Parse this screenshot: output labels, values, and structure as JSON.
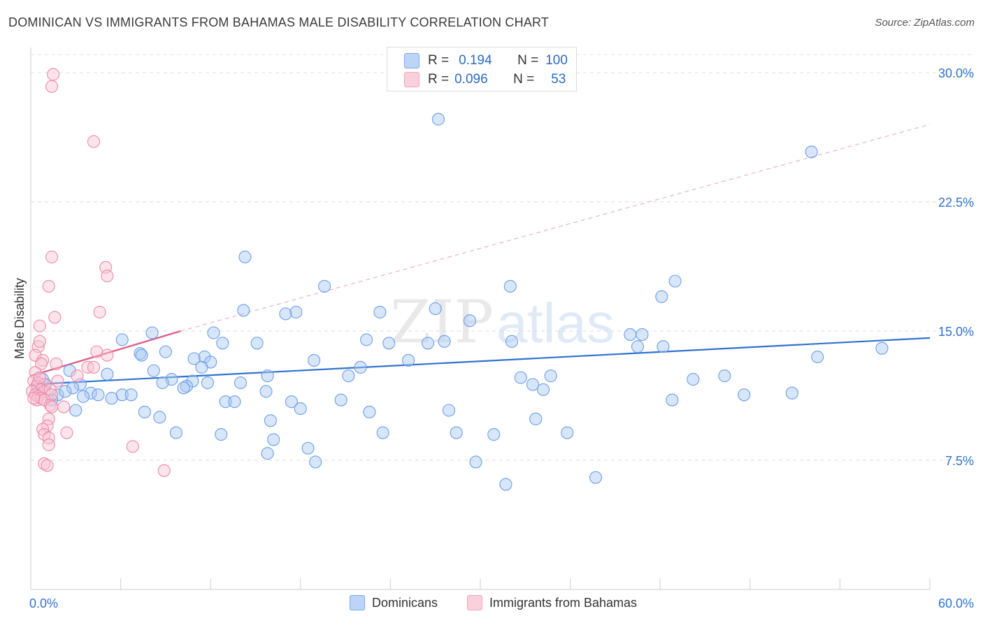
{
  "title": "DOMINICAN VS IMMIGRANTS FROM BAHAMAS MALE DISABILITY CORRELATION CHART",
  "source": "Source: ZipAtlas.com",
  "watermark": {
    "zip": "ZIP",
    "atlas": "atlas"
  },
  "stats": {
    "r_label": "R =",
    "n_label": "N =",
    "rows": [
      {
        "r": "0.194",
        "n": "100",
        "color": "#7aaaf0"
      },
      {
        "r": "0.096",
        "n": "53",
        "color": "#f3a3bd"
      }
    ]
  },
  "chart_data": {
    "type": "scatter",
    "title": "DOMINICAN VS IMMIGRANTS FROM BAHAMAS MALE DISABILITY CORRELATION CHART",
    "xlabel": "",
    "ylabel": "Male Disability",
    "xlim": [
      0,
      60
    ],
    "ylim": [
      0,
      31.3
    ],
    "x_tick_labels": [
      "0.0%",
      "60.0%"
    ],
    "y_ticks": [
      7.5,
      15.0,
      22.5,
      30.0
    ],
    "y_tick_labels": [
      "7.5%",
      "15.0%",
      "22.5%",
      "30.0%"
    ],
    "series": [
      {
        "name": "Dominicans",
        "color": "#6b9ee8",
        "fill": "#a9c8f4",
        "trend": {
          "x": [
            0,
            60
          ],
          "y": [
            11.9,
            14.6
          ],
          "dashed": false,
          "color": "#2f72d0"
        },
        "points": [
          [
            27.2,
            27.3
          ],
          [
            52.1,
            25.4
          ],
          [
            14.3,
            19.3
          ],
          [
            19.6,
            17.6
          ],
          [
            32.0,
            17.6
          ],
          [
            43.0,
            17.9
          ],
          [
            42.1,
            17.0
          ],
          [
            27.0,
            16.3
          ],
          [
            17.7,
            16.1
          ],
          [
            23.3,
            16.1
          ],
          [
            14.2,
            16.2
          ],
          [
            17.0,
            16.0
          ],
          [
            29.3,
            15.6
          ],
          [
            40.8,
            14.8
          ],
          [
            40.0,
            14.8
          ],
          [
            8.1,
            14.9
          ],
          [
            12.2,
            14.9
          ],
          [
            6.1,
            14.5
          ],
          [
            22.4,
            14.5
          ],
          [
            32.1,
            14.4
          ],
          [
            12.8,
            14.3
          ],
          [
            15.1,
            14.3
          ],
          [
            23.9,
            14.3
          ],
          [
            26.5,
            14.3
          ],
          [
            27.6,
            14.4
          ],
          [
            40.5,
            14.1
          ],
          [
            42.2,
            14.1
          ],
          [
            56.8,
            14.0
          ],
          [
            9.0,
            13.8
          ],
          [
            7.3,
            13.7
          ],
          [
            7.4,
            13.6
          ],
          [
            11.6,
            13.5
          ],
          [
            18.9,
            13.3
          ],
          [
            10.9,
            13.4
          ],
          [
            12.0,
            13.2
          ],
          [
            25.2,
            13.3
          ],
          [
            11.4,
            12.9
          ],
          [
            22.0,
            12.9
          ],
          [
            2.6,
            12.7
          ],
          [
            8.2,
            12.7
          ],
          [
            5.1,
            12.5
          ],
          [
            15.8,
            12.4
          ],
          [
            21.2,
            12.4
          ],
          [
            32.7,
            12.3
          ],
          [
            34.7,
            12.4
          ],
          [
            46.3,
            12.4
          ],
          [
            52.5,
            13.5
          ],
          [
            44.2,
            12.2
          ],
          [
            0.8,
            12.2
          ],
          [
            9.4,
            12.2
          ],
          [
            10.8,
            12.1
          ],
          [
            1.0,
            11.9
          ],
          [
            11.8,
            12.0
          ],
          [
            14.0,
            12.0
          ],
          [
            33.5,
            11.9
          ],
          [
            8.8,
            12.0
          ],
          [
            15.7,
            11.5
          ],
          [
            34.2,
            11.6
          ],
          [
            3.3,
            11.9
          ],
          [
            2.8,
            11.7
          ],
          [
            4.0,
            11.4
          ],
          [
            1.8,
            11.3
          ],
          [
            2.3,
            11.5
          ],
          [
            3.5,
            11.2
          ],
          [
            6.1,
            11.3
          ],
          [
            6.7,
            11.3
          ],
          [
            4.5,
            11.3
          ],
          [
            10.4,
            11.8
          ],
          [
            10.2,
            11.7
          ],
          [
            5.4,
            11.1
          ],
          [
            20.7,
            11.0
          ],
          [
            42.8,
            11.0
          ],
          [
            47.6,
            11.3
          ],
          [
            50.8,
            11.4
          ],
          [
            13.0,
            10.9
          ],
          [
            13.6,
            10.9
          ],
          [
            17.4,
            10.9
          ],
          [
            3.0,
            10.4
          ],
          [
            7.6,
            10.3
          ],
          [
            8.6,
            10.0
          ],
          [
            18.0,
            10.5
          ],
          [
            22.6,
            10.3
          ],
          [
            27.9,
            10.4
          ],
          [
            16.0,
            9.8
          ],
          [
            33.7,
            9.9
          ],
          [
            9.7,
            9.1
          ],
          [
            12.7,
            9.0
          ],
          [
            23.5,
            9.1
          ],
          [
            28.4,
            9.1
          ],
          [
            30.9,
            9.0
          ],
          [
            35.8,
            9.1
          ],
          [
            16.2,
            8.7
          ],
          [
            18.5,
            8.2
          ],
          [
            15.8,
            7.9
          ],
          [
            19.0,
            7.4
          ],
          [
            29.7,
            7.4
          ],
          [
            37.7,
            6.5
          ],
          [
            31.7,
            6.1
          ],
          [
            0.5,
            11.6
          ],
          [
            1.4,
            11.0
          ]
        ]
      },
      {
        "name": "Immigrants from Bahamas",
        "color": "#ee89a8",
        "fill": "#f8c3d3",
        "trend": {
          "x": [
            0,
            10
          ],
          "y": [
            12.4,
            15.0
          ],
          "dashed": false,
          "color": "#e0608a",
          "extension": {
            "x": [
              10,
              60
            ],
            "y": [
              15.0,
              27.0
            ],
            "dashed": true
          }
        },
        "points": [
          [
            1.5,
            29.9
          ],
          [
            1.4,
            29.2
          ],
          [
            4.2,
            26.0
          ],
          [
            1.4,
            19.3
          ],
          [
            5.0,
            18.7
          ],
          [
            5.1,
            18.2
          ],
          [
            1.2,
            17.6
          ],
          [
            4.6,
            16.1
          ],
          [
            1.6,
            15.8
          ],
          [
            0.6,
            15.3
          ],
          [
            0.5,
            14.1
          ],
          [
            0.6,
            14.4
          ],
          [
            0.3,
            13.6
          ],
          [
            0.8,
            13.3
          ],
          [
            4.4,
            13.8
          ],
          [
            5.1,
            13.6
          ],
          [
            0.7,
            13.1
          ],
          [
            1.7,
            13.1
          ],
          [
            3.8,
            12.9
          ],
          [
            4.2,
            12.9
          ],
          [
            0.3,
            12.6
          ],
          [
            3.1,
            12.4
          ],
          [
            0.2,
            12.1
          ],
          [
            0.5,
            12.0
          ],
          [
            0.9,
            11.9
          ],
          [
            1.8,
            12.1
          ],
          [
            0.4,
            11.8
          ],
          [
            0.7,
            11.6
          ],
          [
            0.9,
            11.5
          ],
          [
            0.1,
            11.5
          ],
          [
            0.3,
            11.3
          ],
          [
            0.5,
            11.2
          ],
          [
            0.4,
            11.0
          ],
          [
            0.7,
            11.1
          ],
          [
            1.3,
            11.6
          ],
          [
            1.4,
            11.3
          ],
          [
            0.9,
            11.0
          ],
          [
            0.2,
            11.1
          ],
          [
            1.3,
            10.7
          ],
          [
            1.4,
            10.6
          ],
          [
            2.2,
            10.6
          ],
          [
            1.2,
            9.9
          ],
          [
            1.1,
            9.5
          ],
          [
            0.8,
            9.3
          ],
          [
            2.4,
            9.1
          ],
          [
            0.9,
            9.0
          ],
          [
            1.2,
            8.8
          ],
          [
            1.2,
            8.4
          ],
          [
            6.8,
            8.3
          ],
          [
            0.9,
            7.3
          ],
          [
            1.1,
            7.2
          ],
          [
            8.9,
            6.9
          ],
          [
            0.6,
            12.3
          ]
        ]
      }
    ]
  }
}
